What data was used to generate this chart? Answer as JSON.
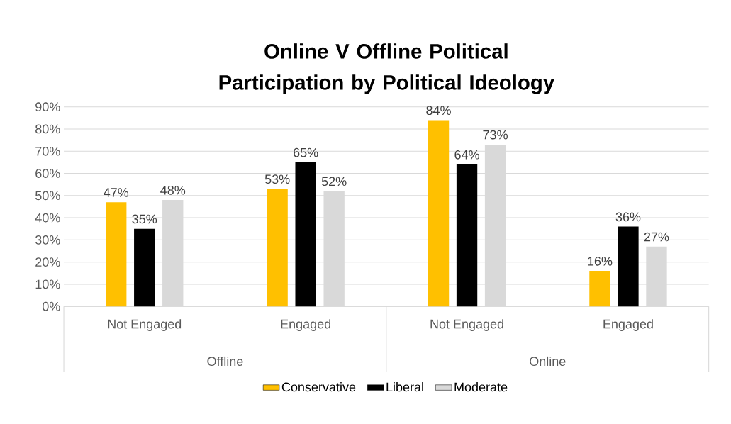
{
  "chart_data": {
    "type": "bar",
    "title": "Online V Offline Political Participation by Political Ideology",
    "categories": [
      "Not Engaged",
      "Engaged",
      "Not Engaged",
      "Engaged"
    ],
    "annotations": [
      "Offline",
      "Online"
    ],
    "series": [
      {
        "name": "Conservative",
        "color": "#ffc000",
        "values": [
          47,
          53,
          84,
          16
        ],
        "value_labels": [
          "47%",
          "53%",
          "84%",
          "16%"
        ]
      },
      {
        "name": "Liberal",
        "color": "#000000",
        "values": [
          35,
          65,
          64,
          36
        ],
        "value_labels": [
          "35%",
          "65%",
          "64%",
          "36%"
        ]
      },
      {
        "name": "Moderate",
        "color": "#d9d9d9",
        "values": [
          48,
          52,
          73,
          27
        ],
        "value_labels": [
          "48%",
          "52%",
          "73%",
          "27%"
        ]
      }
    ],
    "ylim": [
      0,
      90
    ],
    "yticks": [
      {
        "value": 0,
        "label": "0%"
      },
      {
        "value": 10,
        "label": "10%"
      },
      {
        "value": 20,
        "label": "20%"
      },
      {
        "value": 30,
        "label": "30%"
      },
      {
        "value": 40,
        "label": "40%"
      },
      {
        "value": 50,
        "label": "50%"
      },
      {
        "value": 60,
        "label": "60%"
      },
      {
        "value": 70,
        "label": "70%"
      },
      {
        "value": 80,
        "label": "80%"
      },
      {
        "value": 90,
        "label": "90%"
      }
    ],
    "grid": "y",
    "legend": "bottom"
  }
}
